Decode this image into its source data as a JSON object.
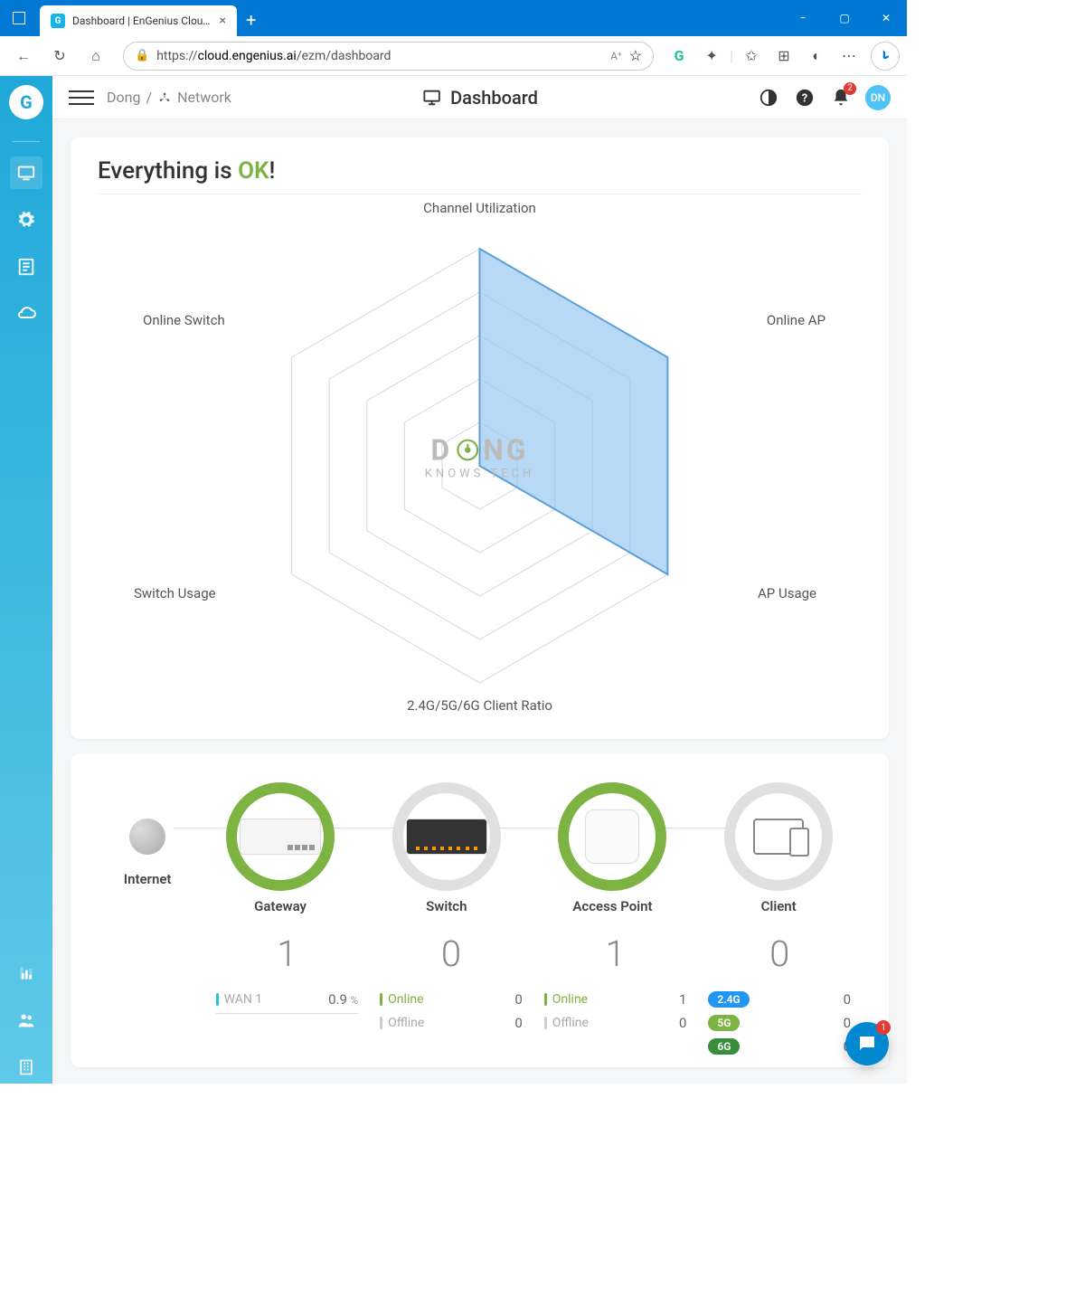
{
  "browser": {
    "tab_title": "Dashboard | EnGenius Cloud - D…",
    "url_prefix": "https://",
    "url_host": "cloud.engenius.ai",
    "url_path": "/ezm/dashboard"
  },
  "header": {
    "breadcrumb_org": "Dong",
    "breadcrumb_net": "Network",
    "page_title": "Dashboard",
    "notif_count": "2",
    "avatar": "DN"
  },
  "status": {
    "prefix": "Everything is ",
    "ok": "OK",
    "suffix": "!"
  },
  "radar": {
    "labels": {
      "top": "Channel Utilization",
      "top_right": "Online AP",
      "bottom_right": "AP Usage",
      "bottom": "2.4G/5G/6G Client Ratio",
      "bottom_left": "Switch Usage",
      "top_left": "Online Switch"
    },
    "rings": 5,
    "data_fill_color": "#90c4f0",
    "data_stroke_color": "#5a9fd8",
    "grid_color": "#d8d8d8",
    "data_values": [
      1.0,
      1.0,
      1.0,
      0.0,
      0.0,
      0.0
    ]
  },
  "watermark": {
    "line1a": "D",
    "line1b": "NG",
    "line2": "KNOWS TECH"
  },
  "topology": {
    "nodes": [
      {
        "label": "Internet",
        "ring": "none"
      },
      {
        "label": "Gateway",
        "ring": "green"
      },
      {
        "label": "Switch",
        "ring": "grey"
      },
      {
        "label": "Access Point",
        "ring": "green"
      },
      {
        "label": "Client",
        "ring": "grey"
      }
    ]
  },
  "stats": {
    "gateway": {
      "count": "1",
      "wan_label": "WAN 1",
      "wan_val": "0.9",
      "wan_unit": "%"
    },
    "switch": {
      "count": "0",
      "online_label": "Online",
      "online_val": "0",
      "offline_label": "Offline",
      "offline_val": "0"
    },
    "ap": {
      "count": "1",
      "online_label": "Online",
      "online_val": "1",
      "offline_label": "Offline",
      "offline_val": "0"
    },
    "client": {
      "count": "0",
      "bands": [
        {
          "label": "2.4G",
          "val": "0",
          "class": "band-24"
        },
        {
          "label": "5G",
          "val": "0",
          "class": "band-5"
        },
        {
          "label": "6G",
          "val": "0",
          "class": "band-6"
        }
      ]
    }
  },
  "chat_badge": "1"
}
